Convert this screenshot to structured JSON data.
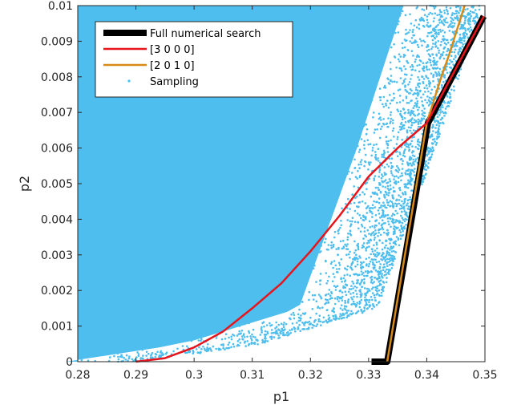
{
  "chart_data": {
    "type": "line",
    "xlabel": "p1",
    "ylabel": "p2",
    "xlim": [
      0.28,
      0.35
    ],
    "ylim": [
      0,
      0.01
    ],
    "x_ticks": [
      "0.28",
      "0.29",
      "0.3",
      "0.31",
      "0.32",
      "0.33",
      "0.34",
      "0.35"
    ],
    "y_ticks": [
      "0",
      "0.001",
      "0.002",
      "0.003",
      "0.004",
      "0.005",
      "0.006",
      "0.007",
      "0.008",
      "0.009",
      "0.01"
    ],
    "grid": false,
    "legend_position": "top-left",
    "colors": {
      "full_search": "#000000",
      "s3000": "#e8141c",
      "s2010": "#d88a17",
      "sampling": "#4dbeee"
    },
    "series": [
      {
        "name": "Full numerical search",
        "style": "thick-line",
        "points": [
          [
            0.3305,
            0
          ],
          [
            0.3332,
            0
          ],
          [
            0.3402,
            0.0067
          ],
          [
            0.3498,
            0.0097
          ]
        ]
      },
      {
        "name": "[3 0 0 0]",
        "style": "line",
        "points": [
          [
            0.29,
            0
          ],
          [
            0.295,
            0.0001
          ],
          [
            0.3,
            0.0004
          ],
          [
            0.305,
            0.00085
          ],
          [
            0.31,
            0.0015
          ],
          [
            0.315,
            0.0022
          ],
          [
            0.32,
            0.0031
          ],
          [
            0.325,
            0.0041
          ],
          [
            0.33,
            0.0052
          ],
          [
            0.335,
            0.006
          ],
          [
            0.34,
            0.0067
          ],
          [
            0.3498,
            0.0097
          ]
        ]
      },
      {
        "name": "[2 0 1 0]",
        "style": "line",
        "points": [
          [
            0.3332,
            0
          ],
          [
            0.34,
            0.0067
          ],
          [
            0.3425,
            0.008
          ],
          [
            0.3438,
            0.0086
          ],
          [
            0.3465,
            0.01
          ]
        ]
      },
      {
        "name": "Sampling",
        "style": "scatter",
        "description_region": "dense points filling p2 in [0, 0.01]; right edge of the cloud goes from about p1=0.333 at p2=0 to about p1=0.35 at p2=0.01",
        "right_boundary": [
          [
            0.29,
            0
          ],
          [
            0.31,
            0.0005
          ],
          [
            0.33,
            0.0015
          ],
          [
            0.34,
            0.006
          ],
          [
            0.348,
            0.01
          ]
        ]
      }
    ]
  }
}
